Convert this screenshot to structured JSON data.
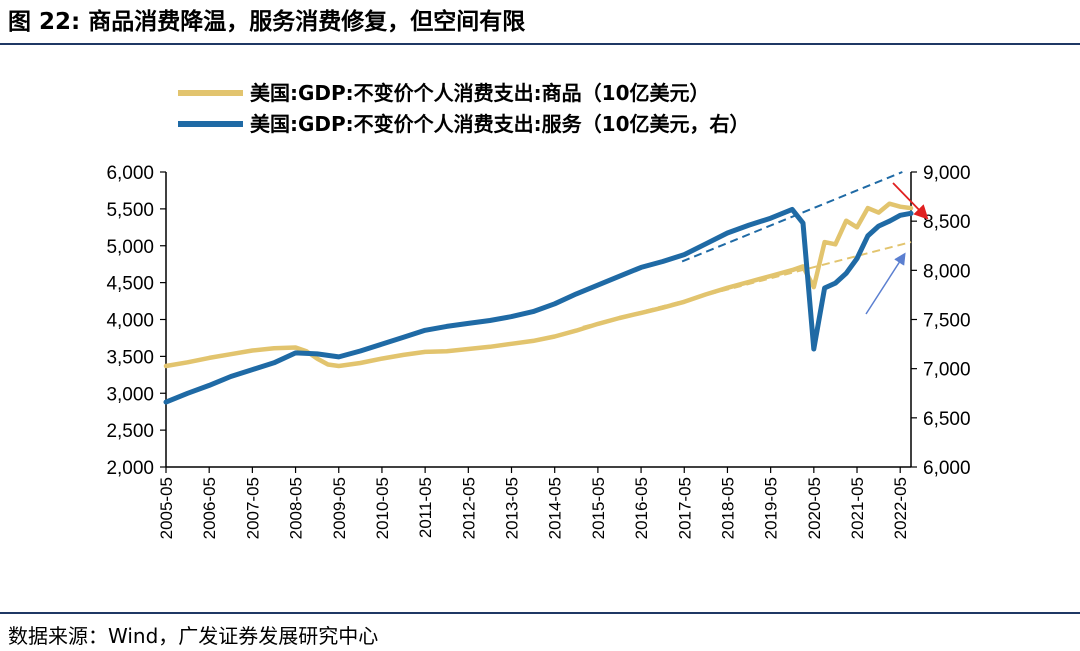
{
  "header": {
    "figure_label": "图 22:",
    "title": "商品消费降温，服务消费修复，但空间有限"
  },
  "footer": {
    "source": "数据来源：Wind，广发证券发展研究中心"
  },
  "colors": {
    "goods": "#e2c46e",
    "services": "#1f6aa5",
    "trend_arrow": "#5b7fd0",
    "down_arrow": "#e02020",
    "rule": "#1f3864"
  },
  "chart_data": {
    "type": "line",
    "legend": [
      "美国:GDP:不变价个人消费支出:商品（10亿美元）",
      "美国:GDP:不变价个人消费支出:服务（10亿美元，右）"
    ],
    "y_left": {
      "ylim": [
        2000,
        6000
      ],
      "ticks": [
        "2,000",
        "2,500",
        "3,000",
        "3,500",
        "4,000",
        "4,500",
        "5,000",
        "5,500",
        "6,000"
      ]
    },
    "y_right": {
      "ylim": [
        6000,
        9000
      ],
      "ticks": [
        "6,000",
        "6,500",
        "7,000",
        "7,500",
        "8,000",
        "8,500",
        "9,000"
      ]
    },
    "x_tick_labels": [
      "2005-05",
      "2006-05",
      "2007-05",
      "2008-05",
      "2009-05",
      "2010-05",
      "2011-05",
      "2012-05",
      "2013-05",
      "2014-05",
      "2015-05",
      "2016-05",
      "2017-05",
      "2018-05",
      "2019-05",
      "2020-05",
      "2021-05",
      "2022-05"
    ],
    "x_range": [
      2005.25,
      2022.5
    ],
    "series": [
      {
        "name": "商品",
        "axis": "left",
        "x": [
          2005.25,
          2005.75,
          2006.25,
          2006.75,
          2007.25,
          2007.75,
          2008.25,
          2008.5,
          2008.75,
          2009.0,
          2009.25,
          2009.75,
          2010.25,
          2010.75,
          2011.25,
          2011.75,
          2012.25,
          2012.75,
          2013.25,
          2013.75,
          2014.25,
          2014.75,
          2015.25,
          2015.75,
          2016.25,
          2016.75,
          2017.25,
          2017.75,
          2018.25,
          2018.75,
          2019.0,
          2019.25,
          2019.75,
          2020.0,
          2020.25,
          2020.5,
          2020.75,
          2021.0,
          2021.25,
          2021.5,
          2021.75,
          2022.0,
          2022.25,
          2022.5
        ],
        "values": [
          3370,
          3420,
          3480,
          3530,
          3580,
          3610,
          3620,
          3570,
          3470,
          3390,
          3370,
          3410,
          3470,
          3520,
          3560,
          3570,
          3600,
          3630,
          3670,
          3710,
          3770,
          3850,
          3940,
          4020,
          4090,
          4160,
          4240,
          4340,
          4430,
          4510,
          4550,
          4590,
          4670,
          4720,
          4440,
          5050,
          5020,
          5340,
          5250,
          5510,
          5450,
          5570,
          5530,
          5510
        ]
      },
      {
        "name": "服务",
        "axis": "right",
        "x": [
          2005.25,
          2005.75,
          2006.25,
          2006.75,
          2007.25,
          2007.75,
          2008.25,
          2008.75,
          2009.25,
          2009.75,
          2010.25,
          2010.75,
          2011.25,
          2011.75,
          2012.25,
          2012.75,
          2013.25,
          2013.75,
          2014.25,
          2014.75,
          2015.25,
          2015.75,
          2016.25,
          2016.75,
          2017.25,
          2017.75,
          2018.25,
          2018.75,
          2019.25,
          2019.75,
          2020.0,
          2020.25,
          2020.5,
          2020.75,
          2021.0,
          2021.25,
          2021.5,
          2021.75,
          2022.0,
          2022.25,
          2022.5
        ],
        "values": [
          6660,
          6750,
          6830,
          6920,
          6990,
          7060,
          7160,
          7150,
          7120,
          7180,
          7250,
          7320,
          7390,
          7430,
          7460,
          7490,
          7530,
          7580,
          7660,
          7760,
          7850,
          7940,
          8030,
          8090,
          8160,
          8270,
          8380,
          8460,
          8530,
          8620,
          8480,
          7200,
          7820,
          7870,
          7970,
          8120,
          8350,
          8450,
          8500,
          8560,
          8580
        ]
      }
    ]
  }
}
